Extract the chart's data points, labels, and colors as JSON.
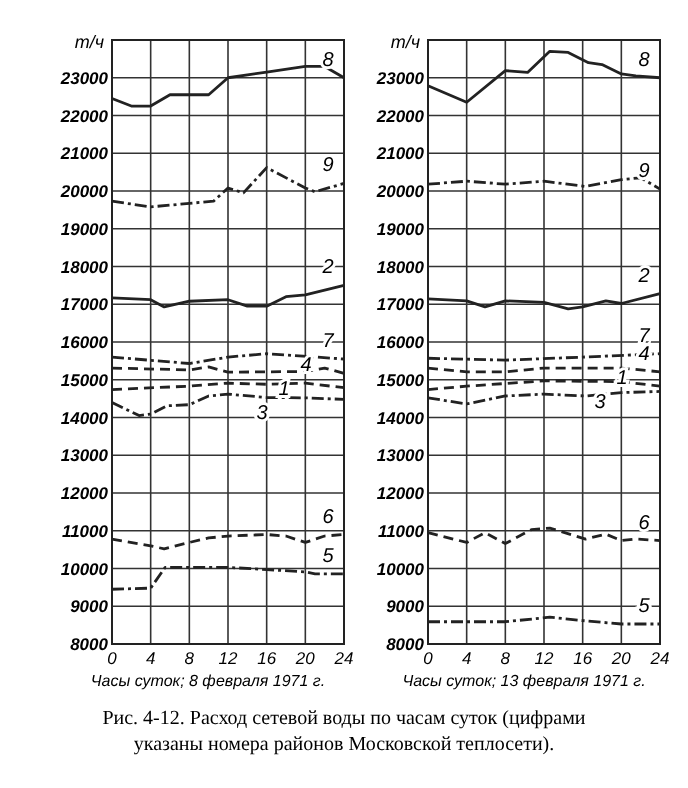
{
  "chart_data": [
    {
      "type": "line",
      "xlabel": "Часы суток; 8 февраля 1971 г.",
      "ylabel": "т/ч",
      "xlim": [
        0,
        24
      ],
      "xticks": [
        0,
        4,
        8,
        12,
        16,
        20,
        24
      ],
      "ylim": [
        8000,
        24000
      ],
      "yticks": [
        8000,
        9000,
        10000,
        11000,
        12000,
        13000,
        14000,
        15000,
        16000,
        17000,
        18000,
        19000,
        20000,
        21000,
        22000,
        23000
      ],
      "grid": true,
      "annotations": [
        "Рис. 4-12. Расход сетевой воды по часам суток (цифрами указаны номера районов Московской теплосети)."
      ],
      "series": [
        {
          "name": "8",
          "color": "#222222",
          "line_style": "solid",
          "x": [
            0,
            2,
            4,
            6,
            10,
            12,
            16,
            20,
            22,
            24
          ],
          "values": [
            22450,
            22250,
            22250,
            22550,
            22550,
            23000,
            23150,
            23300,
            23300,
            23000
          ]
        },
        {
          "name": "9",
          "color": "#222222",
          "line_style": "dotted",
          "x": [
            0,
            4,
            10.5,
            12,
            13.6,
            16,
            20,
            21,
            24
          ],
          "values": [
            19730,
            19580,
            19730,
            20080,
            19950,
            20620,
            20080,
            19980,
            20200
          ]
        },
        {
          "name": "2",
          "color": "#222222",
          "line_style": "solid",
          "x": [
            0,
            4,
            5.4,
            8,
            12,
            14,
            16,
            18,
            20,
            24
          ],
          "values": [
            17170,
            17120,
            16930,
            17080,
            17120,
            16950,
            16950,
            17200,
            17250,
            17500
          ]
        },
        {
          "name": "7",
          "color": "#222222",
          "line_style": "dotted",
          "x": [
            0,
            8,
            12,
            16,
            24
          ],
          "values": [
            15600,
            15430,
            15600,
            15690,
            15550
          ]
        },
        {
          "name": "4",
          "color": "#222222",
          "line_style": "dashed",
          "x": [
            0,
            8,
            10,
            12,
            20,
            22,
            24
          ],
          "values": [
            15310,
            15260,
            15340,
            15200,
            15220,
            15310,
            15170
          ]
        },
        {
          "name": "1",
          "color": "#222222",
          "line_style": "dashed",
          "x": [
            0,
            8,
            12,
            16,
            20,
            24
          ],
          "values": [
            14740,
            14830,
            14910,
            14880,
            14910,
            14790
          ]
        },
        {
          "name": "3",
          "color": "#222222",
          "line_style": "dotted",
          "x": [
            0,
            2.8,
            4,
            5.7,
            8,
            10,
            12,
            16,
            20,
            24
          ],
          "values": [
            14400,
            14050,
            14090,
            14310,
            14340,
            14570,
            14620,
            14530,
            14520,
            14480
          ]
        },
        {
          "name": "6",
          "color": "#222222",
          "line_style": "dashed",
          "x": [
            0,
            4,
            5.4,
            8,
            10,
            12,
            16,
            18,
            20,
            22,
            24
          ],
          "values": [
            10780,
            10600,
            10520,
            10690,
            10810,
            10860,
            10900,
            10860,
            10690,
            10860,
            10900
          ]
        },
        {
          "name": "5",
          "color": "#222222",
          "line_style": "dotted",
          "x": [
            0,
            4,
            5.5,
            8,
            12,
            16,
            20,
            21,
            24
          ],
          "values": [
            9450,
            9480,
            10030,
            10030,
            10030,
            9970,
            9910,
            9860,
            9860
          ]
        }
      ]
    },
    {
      "type": "line",
      "xlabel": "Часы суток; 13 февраля 1971 г.",
      "ylabel": "т/ч",
      "xlim": [
        0,
        24
      ],
      "xticks": [
        0,
        4,
        8,
        12,
        16,
        20,
        24
      ],
      "ylim": [
        8000,
        24000
      ],
      "yticks": [
        8000,
        9000,
        10000,
        11000,
        12000,
        13000,
        14000,
        15000,
        16000,
        17000,
        18000,
        19000,
        20000,
        21000,
        22000,
        23000
      ],
      "grid": true,
      "series": [
        {
          "name": "8",
          "color": "#222222",
          "line_style": "solid",
          "x": [
            0,
            4,
            8,
            10.3,
            12.6,
            14.5,
            16.6,
            18,
            20,
            21.5,
            24
          ],
          "values": [
            22790,
            22350,
            23190,
            23140,
            23700,
            23670,
            23400,
            23350,
            23100,
            23050,
            23000
          ]
        },
        {
          "name": "9",
          "color": "#222222",
          "line_style": "dotted",
          "x": [
            0,
            4,
            8,
            12,
            16.3,
            20,
            22,
            24
          ],
          "values": [
            20180,
            20260,
            20180,
            20260,
            20120,
            20300,
            20350,
            20050
          ]
        },
        {
          "name": "2",
          "color": "#222222",
          "line_style": "solid",
          "x": [
            0,
            4,
            5.9,
            8,
            12,
            14.5,
            16,
            18.4,
            20,
            24
          ],
          "values": [
            17140,
            17090,
            16930,
            17090,
            17050,
            16880,
            16930,
            17090,
            17020,
            17280
          ]
        },
        {
          "name": "7",
          "color": "#222222",
          "line_style": "dotted",
          "x": [
            0,
            8,
            16,
            24
          ],
          "values": [
            15570,
            15520,
            15600,
            15690
          ]
        },
        {
          "name": "4",
          "color": "#222222",
          "line_style": "dashed",
          "x": [
            0,
            4,
            8,
            12,
            20,
            24
          ],
          "values": [
            15310,
            15210,
            15210,
            15310,
            15310,
            15210
          ]
        },
        {
          "name": "1",
          "color": "#222222",
          "line_style": "dashed",
          "x": [
            0,
            4,
            12,
            20,
            24
          ],
          "values": [
            14740,
            14830,
            14970,
            14950,
            14830
          ]
        },
        {
          "name": "3",
          "color": "#222222",
          "line_style": "dotted",
          "x": [
            0,
            4,
            8,
            12,
            16.3,
            20,
            24
          ],
          "values": [
            14520,
            14360,
            14570,
            14620,
            14570,
            14660,
            14690
          ]
        },
        {
          "name": "6",
          "color": "#222222",
          "line_style": "dashed",
          "x": [
            0,
            4,
            5.9,
            8,
            10.7,
            12.6,
            16.3,
            18.4,
            20,
            21.5,
            24
          ],
          "values": [
            10950,
            10690,
            10950,
            10660,
            11030,
            11070,
            10780,
            10910,
            10740,
            10780,
            10740
          ]
        },
        {
          "name": "5",
          "color": "#222222",
          "line_style": "dotted",
          "x": [
            0,
            8,
            12.6,
            16,
            20,
            24
          ],
          "values": [
            8590,
            8590,
            8710,
            8620,
            8530,
            8530
          ]
        }
      ]
    }
  ]
}
